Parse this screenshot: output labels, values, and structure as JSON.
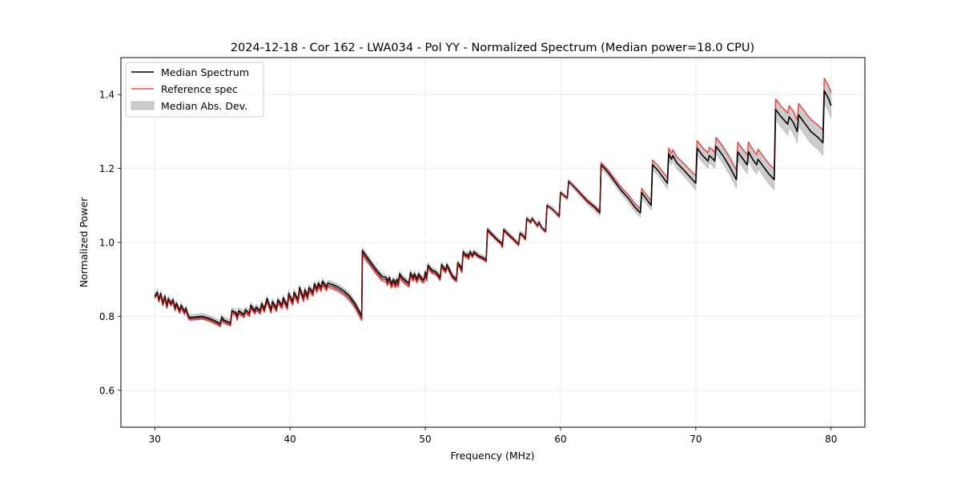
{
  "chart_data": {
    "type": "line",
    "title": "2024-12-18 - Cor 162 - LWA034 - Pol YY - Normalized Spectrum (Median power=18.0 CPU)",
    "xlabel": "Frequency (MHz)",
    "ylabel": "Normalized Power",
    "xlim": [
      27.5,
      82.5
    ],
    "ylim": [
      0.5,
      1.5
    ],
    "xticks": [
      30,
      40,
      50,
      60,
      70,
      80
    ],
    "xtick_labels": [
      "30",
      "40",
      "50",
      "60",
      "70",
      "80"
    ],
    "yticks": [
      0.6,
      0.8,
      1.0,
      1.2,
      1.4
    ],
    "ytick_labels": [
      "0.6",
      "0.8",
      "1.0",
      "1.2",
      "1.4"
    ],
    "grid": true,
    "legend": {
      "position": "top-left",
      "entries": [
        {
          "label": "Median Spectrum",
          "kind": "line",
          "color": "#000000"
        },
        {
          "label": "Reference spec",
          "kind": "line",
          "color": "#e05252"
        },
        {
          "label": "Median Abs. Dev.",
          "kind": "patch",
          "color": "#bfbfbf"
        }
      ]
    },
    "series": [
      {
        "name": "Median Spectrum",
        "color": "#000000",
        "points": [
          [
            30.0,
            0.855
          ],
          [
            30.2,
            0.865
          ],
          [
            30.3,
            0.845
          ],
          [
            30.45,
            0.862
          ],
          [
            30.6,
            0.835
          ],
          [
            30.75,
            0.855
          ],
          [
            30.9,
            0.828
          ],
          [
            31.0,
            0.848
          ],
          [
            31.2,
            0.835
          ],
          [
            31.35,
            0.845
          ],
          [
            31.5,
            0.822
          ],
          [
            31.6,
            0.835
          ],
          [
            31.85,
            0.815
          ],
          [
            31.95,
            0.83
          ],
          [
            32.2,
            0.812
          ],
          [
            32.3,
            0.822
          ],
          [
            32.5,
            0.8
          ],
          [
            32.6,
            0.797
          ],
          [
            33.0,
            0.798
          ],
          [
            33.5,
            0.8
          ],
          [
            34.0,
            0.795
          ],
          [
            34.5,
            0.787
          ],
          [
            34.85,
            0.78
          ],
          [
            34.95,
            0.798
          ],
          [
            35.1,
            0.79
          ],
          [
            35.6,
            0.782
          ],
          [
            35.7,
            0.815
          ],
          [
            36.0,
            0.81
          ],
          [
            36.1,
            0.798
          ],
          [
            36.2,
            0.815
          ],
          [
            36.6,
            0.805
          ],
          [
            36.7,
            0.818
          ],
          [
            37.0,
            0.808
          ],
          [
            37.1,
            0.83
          ],
          [
            37.4,
            0.815
          ],
          [
            37.5,
            0.825
          ],
          [
            37.8,
            0.815
          ],
          [
            37.9,
            0.835
          ],
          [
            38.1,
            0.82
          ],
          [
            38.3,
            0.848
          ],
          [
            38.6,
            0.818
          ],
          [
            38.7,
            0.84
          ],
          [
            39.0,
            0.822
          ],
          [
            39.1,
            0.845
          ],
          [
            39.4,
            0.83
          ],
          [
            39.5,
            0.85
          ],
          [
            39.8,
            0.828
          ],
          [
            39.9,
            0.862
          ],
          [
            40.2,
            0.84
          ],
          [
            40.3,
            0.865
          ],
          [
            40.6,
            0.845
          ],
          [
            40.7,
            0.878
          ],
          [
            41.0,
            0.85
          ],
          [
            41.1,
            0.872
          ],
          [
            41.3,
            0.855
          ],
          [
            41.4,
            0.878
          ],
          [
            41.7,
            0.865
          ],
          [
            41.8,
            0.888
          ],
          [
            42.0,
            0.875
          ],
          [
            42.1,
            0.89
          ],
          [
            42.3,
            0.878
          ],
          [
            42.4,
            0.895
          ],
          [
            42.7,
            0.88
          ],
          [
            42.8,
            0.89
          ],
          [
            43.2,
            0.885
          ],
          [
            43.6,
            0.878
          ],
          [
            44.0,
            0.868
          ],
          [
            44.4,
            0.855
          ],
          [
            44.8,
            0.835
          ],
          [
            45.2,
            0.808
          ],
          [
            45.3,
            0.8
          ],
          [
            45.35,
            0.978
          ],
          [
            45.7,
            0.96
          ],
          [
            46.0,
            0.945
          ],
          [
            46.4,
            0.925
          ],
          [
            46.8,
            0.908
          ],
          [
            47.1,
            0.905
          ],
          [
            47.2,
            0.895
          ],
          [
            47.35,
            0.905
          ],
          [
            47.5,
            0.888
          ],
          [
            47.65,
            0.9
          ],
          [
            47.8,
            0.888
          ],
          [
            47.9,
            0.9
          ],
          [
            48.0,
            0.89
          ],
          [
            48.1,
            0.915
          ],
          [
            48.3,
            0.905
          ],
          [
            48.6,
            0.895
          ],
          [
            48.8,
            0.89
          ],
          [
            48.9,
            0.918
          ],
          [
            49.1,
            0.905
          ],
          [
            49.2,
            0.915
          ],
          [
            49.4,
            0.9
          ],
          [
            49.5,
            0.915
          ],
          [
            49.8,
            0.9
          ],
          [
            49.9,
            0.9
          ],
          [
            50.0,
            0.92
          ],
          [
            50.1,
            0.905
          ],
          [
            50.2,
            0.938
          ],
          [
            50.5,
            0.925
          ],
          [
            50.8,
            0.92
          ],
          [
            51.1,
            0.905
          ],
          [
            51.2,
            0.94
          ],
          [
            51.5,
            0.925
          ],
          [
            51.6,
            0.94
          ],
          [
            51.8,
            0.925
          ],
          [
            52.0,
            0.91
          ],
          [
            52.3,
            0.9
          ],
          [
            52.4,
            0.945
          ],
          [
            52.6,
            0.935
          ],
          [
            52.7,
            0.925
          ],
          [
            52.8,
            0.975
          ],
          [
            53.0,
            0.965
          ],
          [
            53.1,
            0.968
          ],
          [
            53.2,
            0.96
          ],
          [
            53.3,
            0.975
          ],
          [
            53.5,
            0.965
          ],
          [
            53.6,
            0.975
          ],
          [
            53.9,
            0.965
          ],
          [
            54.3,
            0.958
          ],
          [
            54.5,
            0.952
          ],
          [
            54.6,
            1.035
          ],
          [
            55.0,
            1.02
          ],
          [
            55.4,
            1.005
          ],
          [
            55.6,
            1.0
          ],
          [
            55.7,
            0.99
          ],
          [
            55.8,
            1.035
          ],
          [
            56.2,
            1.02
          ],
          [
            56.5,
            1.01
          ],
          [
            56.9,
            0.995
          ],
          [
            57.0,
            1.025
          ],
          [
            57.2,
            1.02
          ],
          [
            57.4,
            1.01
          ],
          [
            57.5,
            1.065
          ],
          [
            57.8,
            1.055
          ],
          [
            57.9,
            1.065
          ],
          [
            58.2,
            1.05
          ],
          [
            58.3,
            1.045
          ],
          [
            58.4,
            1.055
          ],
          [
            58.6,
            1.04
          ],
          [
            58.9,
            1.03
          ],
          [
            59.0,
            1.1
          ],
          [
            59.4,
            1.09
          ],
          [
            59.8,
            1.075
          ],
          [
            59.9,
            1.07
          ],
          [
            60.0,
            1.135
          ],
          [
            60.3,
            1.125
          ],
          [
            60.5,
            1.12
          ],
          [
            60.6,
            1.165
          ],
          [
            61.0,
            1.15
          ],
          [
            61.5,
            1.13
          ],
          [
            62.0,
            1.11
          ],
          [
            62.5,
            1.095
          ],
          [
            62.9,
            1.08
          ],
          [
            63.0,
            1.21
          ],
          [
            63.5,
            1.19
          ],
          [
            64.0,
            1.165
          ],
          [
            64.5,
            1.14
          ],
          [
            65.0,
            1.12
          ],
          [
            65.5,
            1.095
          ],
          [
            65.9,
            1.08
          ],
          [
            66.0,
            1.135
          ],
          [
            66.3,
            1.12
          ],
          [
            66.6,
            1.105
          ],
          [
            66.7,
            1.1
          ],
          [
            66.8,
            1.21
          ],
          [
            67.2,
            1.195
          ],
          [
            67.6,
            1.175
          ],
          [
            67.9,
            1.16
          ],
          [
            68.0,
            1.24
          ],
          [
            68.2,
            1.225
          ],
          [
            68.3,
            1.235
          ],
          [
            68.6,
            1.215
          ],
          [
            69.0,
            1.2
          ],
          [
            69.5,
            1.18
          ],
          [
            70.0,
            1.16
          ],
          [
            70.1,
            1.255
          ],
          [
            70.5,
            1.235
          ],
          [
            70.9,
            1.22
          ],
          [
            71.0,
            1.235
          ],
          [
            71.3,
            1.225
          ],
          [
            71.4,
            1.22
          ],
          [
            71.5,
            1.26
          ],
          [
            72.0,
            1.235
          ],
          [
            72.5,
            1.205
          ],
          [
            73.0,
            1.17
          ],
          [
            73.1,
            1.245
          ],
          [
            73.4,
            1.23
          ],
          [
            73.8,
            1.21
          ],
          [
            73.9,
            1.245
          ],
          [
            74.2,
            1.225
          ],
          [
            74.5,
            1.21
          ],
          [
            74.6,
            1.225
          ],
          [
            75.0,
            1.205
          ],
          [
            75.4,
            1.185
          ],
          [
            75.8,
            1.17
          ],
          [
            75.9,
            1.36
          ],
          [
            76.3,
            1.34
          ],
          [
            76.8,
            1.32
          ],
          [
            76.9,
            1.34
          ],
          [
            77.2,
            1.325
          ],
          [
            77.5,
            1.3
          ],
          [
            77.6,
            1.345
          ],
          [
            78.0,
            1.325
          ],
          [
            78.5,
            1.3
          ],
          [
            79.0,
            1.285
          ],
          [
            79.4,
            1.27
          ],
          [
            79.5,
            1.41
          ],
          [
            79.8,
            1.39
          ],
          [
            80.0,
            1.37
          ]
        ]
      },
      {
        "name": "Reference spec",
        "color": "#e05252",
        "offset_description": "Reference spectrum relative to median; slightly below below 63 MHz, above above 63 MHz",
        "offsets": [
          [
            30,
            -0.006
          ],
          [
            45,
            -0.012
          ],
          [
            47,
            -0.012
          ],
          [
            60,
            0.0
          ],
          [
            63,
            0.005
          ],
          [
            68,
            0.015
          ],
          [
            72,
            0.025
          ],
          [
            76,
            0.028
          ],
          [
            80,
            0.035
          ]
        ]
      },
      {
        "name": "Median Abs. Dev.",
        "color": "#bfbfbf",
        "kind": "band",
        "half_width": [
          [
            30,
            0.008
          ],
          [
            45,
            0.008
          ],
          [
            60,
            0.006
          ],
          [
            66,
            0.012
          ],
          [
            70,
            0.018
          ],
          [
            76,
            0.028
          ],
          [
            80,
            0.035
          ]
        ]
      }
    ]
  }
}
